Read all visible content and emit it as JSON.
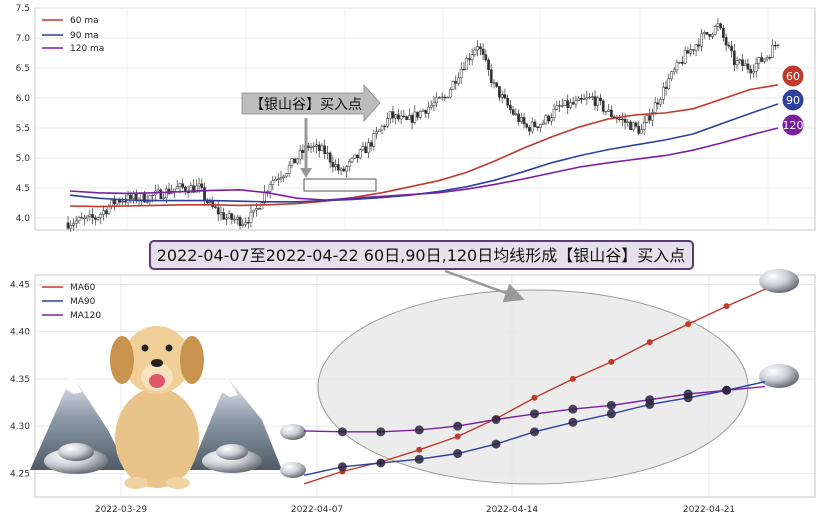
{
  "chart_data": [
    {
      "type": "candlestick",
      "ylim": [
        3.8,
        7.5
      ],
      "y_ticks": [
        "4.0",
        "4.5",
        "5.0",
        "5.5",
        "6.0",
        "6.5",
        "7.0",
        "7.5"
      ],
      "legend": [
        {
          "label": "60 ma",
          "color": "#c0392b"
        },
        {
          "label": "90 ma",
          "color": "#2e3f9e"
        },
        {
          "label": "120 ma",
          "color": "#7b1fa2"
        }
      ],
      "grid": true,
      "legend_position": "top-left",
      "series": [
        {
          "name": "60 ma",
          "values": [
            4.2,
            4.19,
            4.2,
            4.21,
            4.22,
            4.22,
            4.21,
            4.22,
            4.24,
            4.28,
            4.34,
            4.42,
            4.52,
            4.62,
            4.76,
            4.95,
            5.16,
            5.35,
            5.52,
            5.65,
            5.72,
            5.75,
            5.82,
            5.98,
            6.14,
            6.22
          ]
        },
        {
          "name": "90 ma",
          "values": [
            4.38,
            4.33,
            4.3,
            4.29,
            4.29,
            4.29,
            4.28,
            4.27,
            4.27,
            4.29,
            4.31,
            4.34,
            4.38,
            4.44,
            4.52,
            4.63,
            4.77,
            4.92,
            5.04,
            5.14,
            5.22,
            5.3,
            5.4,
            5.57,
            5.74,
            5.9
          ]
        },
        {
          "name": "120 ma",
          "values": [
            4.45,
            4.42,
            4.41,
            4.42,
            4.44,
            4.46,
            4.47,
            4.42,
            4.33,
            4.3,
            4.33,
            4.36,
            4.39,
            4.42,
            4.48,
            4.56,
            4.65,
            4.75,
            4.85,
            4.92,
            4.98,
            5.04,
            5.13,
            5.25,
            5.38,
            5.5
          ]
        }
      ],
      "annotation_label": "【银山谷】买入点",
      "bubbles": [
        "60",
        "90",
        "120"
      ]
    },
    {
      "type": "line",
      "title": "2022-04-07至2022-04-22 60日,90日,120日均线形成【银山谷】买入点",
      "ylim": [
        4.225,
        4.46
      ],
      "y_ticks": [
        "4.25",
        "4.30",
        "4.35",
        "4.40",
        "4.45"
      ],
      "x_ticks": [
        "2022-03-29",
        "2022-04-07",
        "2022-04-14",
        "2022-04-21"
      ],
      "legend_position": "top-left",
      "grid": true,
      "series": [
        {
          "name": "MA60",
          "color": "#c0392b",
          "values": [
            4.239,
            4.252,
            4.262,
            4.275,
            4.289,
            4.308,
            4.33,
            4.35,
            4.368,
            4.389,
            4.408,
            4.427,
            4.445
          ]
        },
        {
          "name": "MA90",
          "color": "#2e3f9e",
          "values": [
            4.248,
            4.257,
            4.261,
            4.265,
            4.271,
            4.281,
            4.294,
            4.304,
            4.313,
            4.323,
            4.33,
            4.338,
            4.347
          ]
        },
        {
          "name": "MA120",
          "color": "#7b1fa2",
          "values": [
            4.295,
            4.294,
            4.294,
            4.296,
            4.3,
            4.307,
            4.313,
            4.318,
            4.322,
            4.328,
            4.334,
            4.338,
            4.342
          ]
        }
      ]
    }
  ]
}
